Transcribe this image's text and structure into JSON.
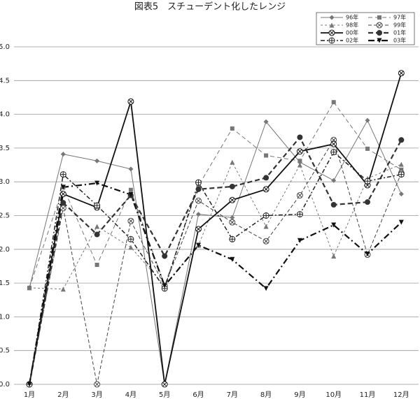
{
  "chart_data": {
    "type": "line",
    "title": "図表5　スチューデント化したレンジ",
    "categories": [
      "1月",
      "2月",
      "3月",
      "4月",
      "5月",
      "6月",
      "7月",
      "8月",
      "9月",
      "10月",
      "11月",
      "12月"
    ],
    "series": [
      {
        "name": "96年",
        "color": "#777777",
        "values": [
          1.43,
          3.41,
          3.31,
          3.19,
          0,
          2.52,
          2.47,
          3.89,
          3.29,
          3.02,
          3.91,
          2.82
        ]
      },
      {
        "name": "97年",
        "color": "#777777",
        "values": [
          1.43,
          2.92,
          1.77,
          2.88,
          1.46,
          2.94,
          3.79,
          3.39,
          3.31,
          4.18,
          3.49,
          3.18
        ]
      },
      {
        "name": "98年",
        "color": "#777777",
        "values": [
          1.43,
          1.41,
          2.34,
          2.03,
          1.46,
          2.06,
          3.29,
          2.34,
          3.25,
          1.9,
          3.05,
          3.26
        ]
      },
      {
        "name": "99年",
        "color": "#444444",
        "values": [
          0,
          2.61,
          0,
          2.42,
          1.46,
          2.72,
          2.4,
          2.12,
          2.8,
          3.62,
          1.92,
          3.13
        ]
      },
      {
        "name": "00年",
        "color": "#111111",
        "values": [
          0,
          2.82,
          2.62,
          4.19,
          0,
          2.3,
          2.73,
          2.89,
          3.45,
          3.56,
          2.95,
          4.61
        ]
      },
      {
        "name": "01年",
        "color": "#333333",
        "values": [
          0,
          2.69,
          2.22,
          2.8,
          1.9,
          2.89,
          2.93,
          3.06,
          3.66,
          2.66,
          2.7,
          3.62
        ]
      },
      {
        "name": "02年",
        "color": "#222222",
        "values": [
          0,
          3.11,
          2.65,
          2.15,
          1.42,
          2.99,
          2.15,
          2.5,
          2.52,
          3.44,
          3.01,
          3.11
        ]
      },
      {
        "name": "03年",
        "color": "#111111",
        "values": [
          0,
          2.92,
          2.98,
          2.81,
          1.46,
          2.06,
          1.85,
          1.42,
          2.13,
          2.36,
          1.93,
          2.4
        ]
      }
    ],
    "ylim": [
      0,
      5
    ],
    "yticks": [
      {
        "value": 0,
        "label": "0.0"
      },
      0.5,
      {
        "value": 1,
        "label": "1.0"
      },
      1.5,
      {
        "value": 2,
        "label": "2.0"
      },
      2.5,
      {
        "value": 3,
        "label": "3.0"
      },
      3.5,
      {
        "value": 4,
        "label": "4.0"
      },
      4.5,
      {
        "value": 5,
        "label": "5.0"
      }
    ],
    "grid": true,
    "legend": "upper right"
  }
}
